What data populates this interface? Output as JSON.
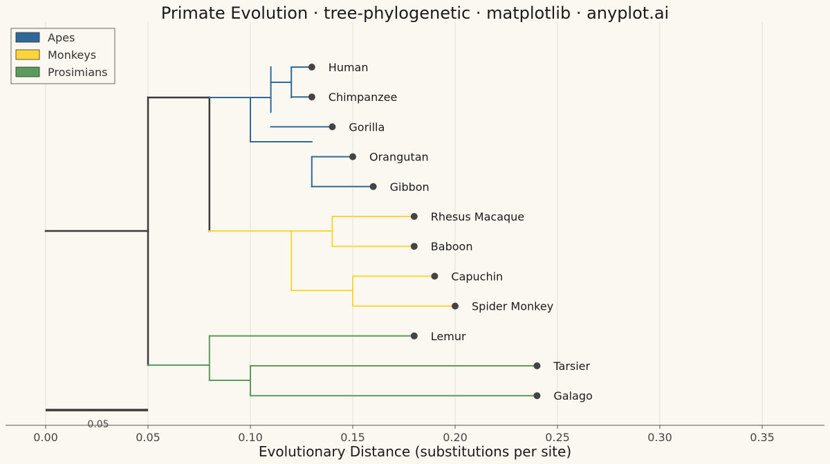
{
  "chart_data": {
    "type": "tree-phylogenetic",
    "title": "Primate Evolution · tree-phylogenetic · matplotlib · anyplot.ai",
    "xlabel": "Evolutionary Distance (substitutions per site)",
    "xlim": [
      -0.02,
      0.38
    ],
    "xticks": [
      0.0,
      0.05,
      0.1,
      0.15,
      0.2,
      0.25,
      0.3,
      0.35
    ],
    "xtick_labels": [
      "0.00",
      "0.05",
      "0.10",
      "0.15",
      "0.20",
      "0.25",
      "0.30",
      "0.35"
    ],
    "grid": "vertical",
    "legend": {
      "placement": "upper-left",
      "entries": [
        {
          "label": "Apes",
          "color": "#306998"
        },
        {
          "label": "Monkeys",
          "color": "#FFD43B"
        },
        {
          "label": "Prosimians",
          "color": "#5A9A5A"
        }
      ]
    },
    "colors": {
      "root": "#3a3a3a",
      "leaf_dot": "#444444",
      "background": "#FAF8F1"
    },
    "leaves": [
      {
        "name": "Human",
        "distance": 0.13,
        "group": "Apes"
      },
      {
        "name": "Chimpanzee",
        "distance": 0.13,
        "group": "Apes"
      },
      {
        "name": "Gorilla",
        "distance": 0.14,
        "group": "Apes"
      },
      {
        "name": "Orangutan",
        "distance": 0.15,
        "group": "Apes"
      },
      {
        "name": "Gibbon",
        "distance": 0.16,
        "group": "Apes"
      },
      {
        "name": "Rhesus Macaque",
        "distance": 0.18,
        "group": "Monkeys"
      },
      {
        "name": "Baboon",
        "distance": 0.18,
        "group": "Monkeys"
      },
      {
        "name": "Capuchin",
        "distance": 0.19,
        "group": "Monkeys"
      },
      {
        "name": "Spider Monkey",
        "distance": 0.2,
        "group": "Monkeys"
      },
      {
        "name": "Lemur",
        "distance": 0.18,
        "group": "Prosimians"
      },
      {
        "name": "Tarsier",
        "distance": 0.24,
        "group": "Prosimians"
      },
      {
        "name": "Galago",
        "distance": 0.24,
        "group": "Prosimians"
      }
    ],
    "scale_bar": {
      "length": 0.05,
      "label": "0.05"
    }
  }
}
